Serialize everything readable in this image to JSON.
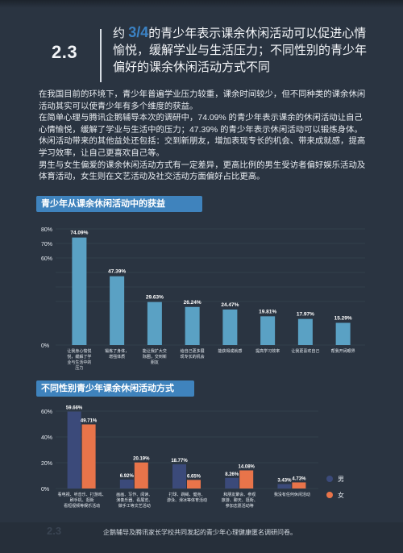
{
  "section": {
    "number": "2.3",
    "title_prefix": "约",
    "title_highlight": "3/4",
    "title_line1_rest": "的青少年表示课余休闲活动可以促进心情",
    "title_line2": "愉悦，缓解学业与生活压力；不同性别的青少年",
    "title_line3": "偏好的课余休闲活动方式不同"
  },
  "body": {
    "p1": "在我国目前的环境下，青少年普遍学业压力较重，课余时间较少，但不同种类的课余休闲活动其实可以使青少年有多个维度的获益。",
    "p2": "在简单心理与腾讯企鹅辅导本次的调研中，74.09% 的青少年表示课余的休闲活动让自己心情愉悦，缓解了学业与生活中的压力；47.39% 的青少年表示休闲活动可以锻炼身体。休闲活动带来的其他益处还包括：交到新朋友，增加表现专长的机会、带来成就感，提高学习效率，让自己更喜欢自己等。",
    "p3": "男生与女生偏爱的课余休闲活动方式有一定差异，更高比例的男生受访者偏好娱乐活动及体育活动，女生则在文艺活动及社交活动方面偏好占比更高。"
  },
  "chart_data": [
    {
      "type": "bar",
      "title": "青少年从课余休闲活动中的获益",
      "categories": [
        "让我身心愉悦，缓解了学业与生活中的压力",
        "锻炼了身体，增强体质",
        "能让我扩大交际圈，交到新朋友",
        "给自己更多展现专长的机会",
        "能获得成就感",
        "提高学习效率",
        "让我更喜欢自己",
        "帮我开阔眼界"
      ],
      "category_lines": [
        [
          "让我身心愉悦",
          "悦，缓解了学",
          "业与生活中的",
          "压力"
        ],
        [
          "锻炼了身体，",
          "增强体质"
        ],
        [
          "能让我扩大交",
          "际圈，交到新",
          "朋友"
        ],
        [
          "给自己更多展",
          "现专长的机会"
        ],
        [
          "能获得成就感"
        ],
        [
          "提高学习效率"
        ],
        [
          "让我更喜欢自己"
        ],
        [
          "帮我开阔眼界"
        ]
      ],
      "values": [
        74.09,
        47.39,
        29.63,
        26.24,
        24.47,
        19.81,
        17.97,
        15.29
      ],
      "value_labels": [
        "74.09%",
        "47.39%",
        "29.63%",
        "26.24%",
        "24.47%",
        "19.81%",
        "17.97%",
        "15.29%"
      ],
      "ylim": [
        0,
        80
      ],
      "yticks": [
        "0%",
        "10%",
        "20%",
        "30%",
        "40%",
        "50%",
        "60%",
        "70%",
        "80%"
      ],
      "bar_color": "#5aa1c4",
      "grid": true
    },
    {
      "type": "bar",
      "title": "不同性别青少年课余休闲活动方式",
      "categories": [
        "娱乐活动",
        "文艺活动",
        "体育活动",
        "社交活动",
        "其他"
      ],
      "category_lines": [
        [
          "看电视、听音乐、打游戏、",
          "刷手机、逛街",
          "看短视频等娱乐活动"
        ],
        [
          "画画、写作、阅读、",
          "演奏乐器、看展览、",
          "做手工等文艺活动"
        ],
        [
          "打球、跳绳、健身、",
          "游泳、滑冰等体育活动"
        ],
        [
          "和朋友聚会、参观",
          "旅游、聊天、逛街、",
          "参加志愿活动等"
        ],
        [
          "我没有任何休闲活动"
        ]
      ],
      "series": [
        {
          "name": "男",
          "values": [
            59.66,
            6.92,
            18.77,
            8.26,
            3.43
          ],
          "labels": [
            "59.66%",
            "6.92%",
            "18.77%",
            "8.26%",
            "3.43%"
          ],
          "color": "#3b4a7a"
        },
        {
          "name": "女",
          "values": [
            49.71,
            20.19,
            6.65,
            14.08,
            4.73
          ],
          "labels": [
            "49.71%",
            "20.19%",
            "6.65%",
            "14.08%",
            "4.73%"
          ],
          "color": "#e8744a"
        }
      ],
      "ylim": [
        0,
        60
      ],
      "yticks": [
        "0%",
        "20%",
        "40%",
        "60%"
      ],
      "legend": "right",
      "grid": true
    }
  ],
  "footer": {
    "page_glyph": "2.3",
    "note": "企鹅辅导及腾讯家长学校共同发起的青少年心理健康匿名调研问卷。"
  }
}
